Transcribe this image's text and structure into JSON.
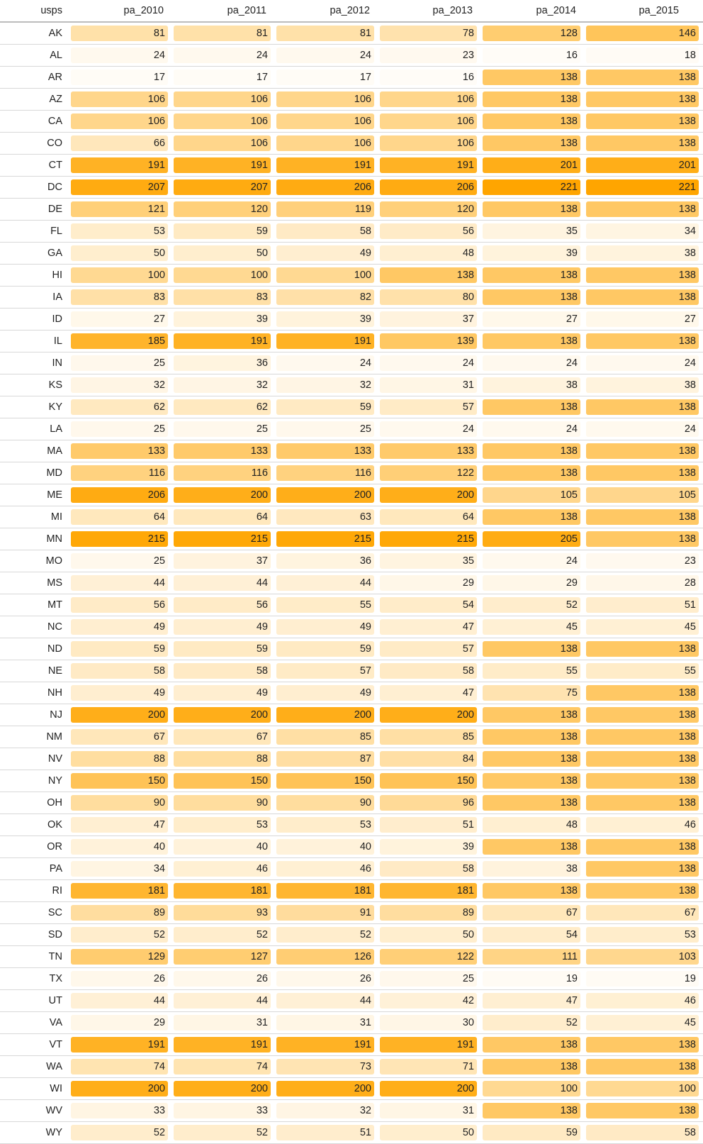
{
  "chart_data": {
    "type": "table",
    "columns": [
      "usps",
      "pa_2010",
      "pa_2011",
      "pa_2012",
      "pa_2013",
      "pa_2014",
      "pa_2015"
    ],
    "rows": [
      {
        "state": "AK",
        "values": [
          81,
          81,
          81,
          78,
          128,
          146
        ]
      },
      {
        "state": "AL",
        "values": [
          24,
          24,
          24,
          23,
          16,
          18
        ]
      },
      {
        "state": "AR",
        "values": [
          17,
          17,
          17,
          16,
          138,
          138
        ]
      },
      {
        "state": "AZ",
        "values": [
          106,
          106,
          106,
          106,
          138,
          138
        ]
      },
      {
        "state": "CA",
        "values": [
          106,
          106,
          106,
          106,
          138,
          138
        ]
      },
      {
        "state": "CO",
        "values": [
          66,
          106,
          106,
          106,
          138,
          138
        ]
      },
      {
        "state": "CT",
        "values": [
          191,
          191,
          191,
          191,
          201,
          201
        ]
      },
      {
        "state": "DC",
        "values": [
          207,
          207,
          206,
          206,
          221,
          221
        ]
      },
      {
        "state": "DE",
        "values": [
          121,
          120,
          119,
          120,
          138,
          138
        ]
      },
      {
        "state": "FL",
        "values": [
          53,
          59,
          58,
          56,
          35,
          34
        ]
      },
      {
        "state": "GA",
        "values": [
          50,
          50,
          49,
          48,
          39,
          38
        ]
      },
      {
        "state": "HI",
        "values": [
          100,
          100,
          100,
          138,
          138,
          138
        ]
      },
      {
        "state": "IA",
        "values": [
          83,
          83,
          82,
          80,
          138,
          138
        ]
      },
      {
        "state": "ID",
        "values": [
          27,
          39,
          39,
          37,
          27,
          27
        ]
      },
      {
        "state": "IL",
        "values": [
          185,
          191,
          191,
          139,
          138,
          138
        ]
      },
      {
        "state": "IN",
        "values": [
          25,
          36,
          24,
          24,
          24,
          24
        ]
      },
      {
        "state": "KS",
        "values": [
          32,
          32,
          32,
          31,
          38,
          38
        ]
      },
      {
        "state": "KY",
        "values": [
          62,
          62,
          59,
          57,
          138,
          138
        ]
      },
      {
        "state": "LA",
        "values": [
          25,
          25,
          25,
          24,
          24,
          24
        ]
      },
      {
        "state": "MA",
        "values": [
          133,
          133,
          133,
          133,
          138,
          138
        ]
      },
      {
        "state": "MD",
        "values": [
          116,
          116,
          116,
          122,
          138,
          138
        ]
      },
      {
        "state": "ME",
        "values": [
          206,
          200,
          200,
          200,
          105,
          105
        ]
      },
      {
        "state": "MI",
        "values": [
          64,
          64,
          63,
          64,
          138,
          138
        ]
      },
      {
        "state": "MN",
        "values": [
          215,
          215,
          215,
          215,
          205,
          138
        ]
      },
      {
        "state": "MO",
        "values": [
          25,
          37,
          36,
          35,
          24,
          23
        ]
      },
      {
        "state": "MS",
        "values": [
          44,
          44,
          44,
          29,
          29,
          28
        ]
      },
      {
        "state": "MT",
        "values": [
          56,
          56,
          55,
          54,
          52,
          51
        ]
      },
      {
        "state": "NC",
        "values": [
          49,
          49,
          49,
          47,
          45,
          45
        ]
      },
      {
        "state": "ND",
        "values": [
          59,
          59,
          59,
          57,
          138,
          138
        ]
      },
      {
        "state": "NE",
        "values": [
          58,
          58,
          57,
          58,
          55,
          55
        ]
      },
      {
        "state": "NH",
        "values": [
          49,
          49,
          49,
          47,
          75,
          138
        ]
      },
      {
        "state": "NJ",
        "values": [
          200,
          200,
          200,
          200,
          138,
          138
        ]
      },
      {
        "state": "NM",
        "values": [
          67,
          67,
          85,
          85,
          138,
          138
        ]
      },
      {
        "state": "NV",
        "values": [
          88,
          88,
          87,
          84,
          138,
          138
        ]
      },
      {
        "state": "NY",
        "values": [
          150,
          150,
          150,
          150,
          138,
          138
        ]
      },
      {
        "state": "OH",
        "values": [
          90,
          90,
          90,
          96,
          138,
          138
        ]
      },
      {
        "state": "OK",
        "values": [
          47,
          53,
          53,
          51,
          48,
          46
        ]
      },
      {
        "state": "OR",
        "values": [
          40,
          40,
          40,
          39,
          138,
          138
        ]
      },
      {
        "state": "PA",
        "values": [
          34,
          46,
          46,
          58,
          38,
          138
        ]
      },
      {
        "state": "RI",
        "values": [
          181,
          181,
          181,
          181,
          138,
          138
        ]
      },
      {
        "state": "SC",
        "values": [
          89,
          93,
          91,
          89,
          67,
          67
        ]
      },
      {
        "state": "SD",
        "values": [
          52,
          52,
          52,
          50,
          54,
          53
        ]
      },
      {
        "state": "TN",
        "values": [
          129,
          127,
          126,
          122,
          111,
          103
        ]
      },
      {
        "state": "TX",
        "values": [
          26,
          26,
          26,
          25,
          19,
          19
        ]
      },
      {
        "state": "UT",
        "values": [
          44,
          44,
          44,
          42,
          47,
          46
        ]
      },
      {
        "state": "VA",
        "values": [
          29,
          31,
          31,
          30,
          52,
          45
        ]
      },
      {
        "state": "VT",
        "values": [
          191,
          191,
          191,
          191,
          138,
          138
        ]
      },
      {
        "state": "WA",
        "values": [
          74,
          74,
          73,
          71,
          138,
          138
        ]
      },
      {
        "state": "WI",
        "values": [
          200,
          200,
          200,
          200,
          100,
          100
        ]
      },
      {
        "state": "WV",
        "values": [
          33,
          33,
          32,
          31,
          138,
          138
        ]
      },
      {
        "state": "WY",
        "values": [
          52,
          52,
          51,
          50,
          59,
          58
        ]
      }
    ],
    "color_scale": {
      "low": "#ffffff",
      "high": "#ffa500",
      "min": 16,
      "max": 221
    }
  }
}
